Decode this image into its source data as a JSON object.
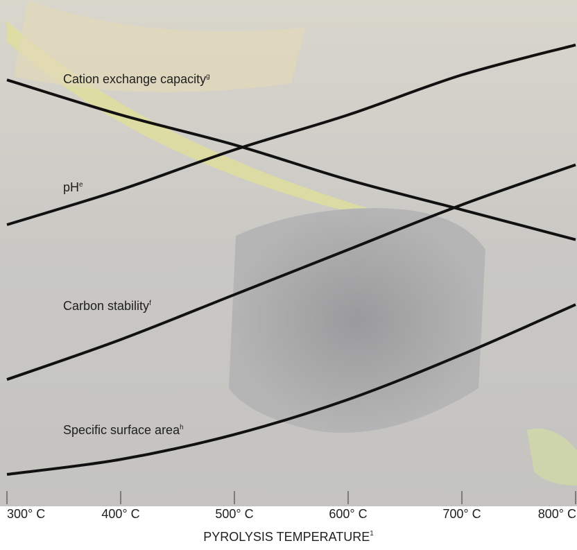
{
  "chart_data": {
    "type": "line",
    "x": [
      300,
      400,
      500,
      600,
      700,
      800
    ],
    "xlim": [
      300,
      800
    ],
    "xticks": [
      {
        "value": 300,
        "label": "300° C"
      },
      {
        "value": 400,
        "label": "400° C"
      },
      {
        "value": 500,
        "label": "500° C"
      },
      {
        "value": 600,
        "label": "600° C"
      },
      {
        "value": 700,
        "label": "700° C"
      },
      {
        "value": 800,
        "label": "800° C"
      }
    ],
    "ylim": [
      0,
      100
    ],
    "x_label": "PYROLYSIS TEMPERATURE",
    "x_label_note": "1",
    "series": [
      {
        "name": "Cation exchange capacity",
        "note": "g",
        "color": "#111111",
        "values": [
          84,
          77,
          71,
          64,
          58,
          52
        ]
      },
      {
        "name": "pH",
        "note": "e",
        "color": "#111111",
        "values": [
          55,
          62,
          70,
          77,
          85,
          91
        ]
      },
      {
        "name": "Carbon stability",
        "note": "f",
        "color": "#111111",
        "values": [
          24,
          32,
          41,
          50,
          59,
          67
        ]
      },
      {
        "name": "Specific surface area",
        "note": "h",
        "color": "#111111",
        "values": [
          5,
          8,
          13,
          20,
          29,
          39
        ]
      }
    ]
  }
}
